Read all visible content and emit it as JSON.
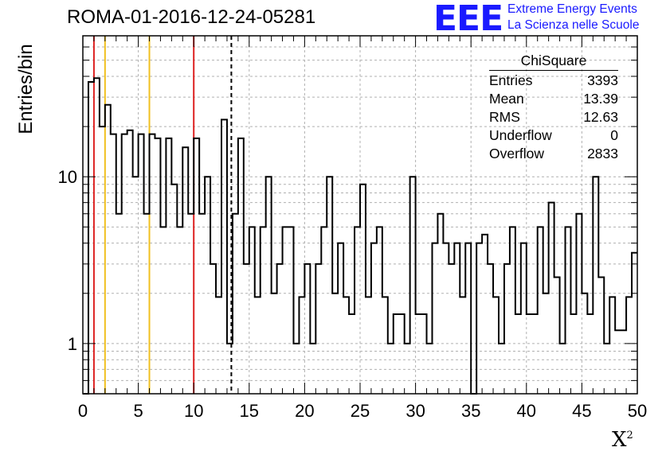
{
  "header": {
    "title": "ROMA-01-2016-12-24-05281",
    "logo_mark": "EEE",
    "logo_line1": "Extreme Energy Events",
    "logo_line2": "La Scienza nelle Scuole"
  },
  "stats_box": {
    "title": "ChiSquare",
    "rows": [
      {
        "label": "Entries",
        "value": "3393"
      },
      {
        "label": "Mean",
        "value": "13.39"
      },
      {
        "label": "RMS",
        "value": "12.63"
      },
      {
        "label": "Underflow",
        "value": "0"
      },
      {
        "label": "Overflow",
        "value": "2833"
      }
    ]
  },
  "colors": {
    "red_line": "#dd2222",
    "yellow_line": "#f0c020",
    "histogram": "#000000",
    "grid": "#b0b0b0",
    "logo": "#1a1aff"
  },
  "chart_data": {
    "type": "bar",
    "histogram": "step",
    "title": "ROMA-01-2016-12-24-05281",
    "xlabel": "X",
    "xlabel_sup": "2",
    "ylabel": "Entries/bin",
    "xlim": [
      0,
      50
    ],
    "ylim": [
      0.5,
      70
    ],
    "yscale": "log",
    "grid": true,
    "bin_width": 0.5,
    "x_ticks": [
      0,
      5,
      10,
      15,
      20,
      25,
      30,
      35,
      40,
      45,
      50
    ],
    "y_tick_labels": [
      {
        "value": 1,
        "label": "1"
      },
      {
        "value": 10,
        "label": "10"
      }
    ],
    "counts": [
      0.5,
      37,
      39,
      20,
      27,
      18,
      6,
      18,
      19,
      10,
      18,
      6,
      18,
      17,
      5,
      17,
      9,
      5,
      15,
      6,
      17,
      6,
      10,
      3,
      1.9,
      22,
      1,
      6,
      17,
      3,
      5,
      1.9,
      5,
      10,
      2,
      3,
      5,
      5,
      1,
      1.9,
      3,
      1,
      3,
      5,
      10,
      2,
      4,
      1.9,
      1.5,
      5,
      9,
      1.9,
      4,
      5,
      1.9,
      1,
      1.5,
      1.5,
      1,
      10,
      1.5,
      1.5,
      1,
      4,
      6,
      4,
      3,
      4,
      1.9,
      4,
      0.5,
      4,
      4.5,
      3,
      1.9,
      1,
      3,
      5,
      1.5,
      4,
      1.5,
      1.5,
      5,
      2,
      7,
      2.5,
      1,
      5,
      1.5,
      6,
      2,
      1.5,
      10,
      2.5,
      1,
      1.9,
      1.2,
      1.2,
      1.9,
      3.5
    ],
    "vertical_lines": [
      {
        "x": 1,
        "style": "solid",
        "color": "red"
      },
      {
        "x": 2,
        "style": "solid",
        "color": "yellow"
      },
      {
        "x": 6,
        "style": "solid",
        "color": "yellow"
      },
      {
        "x": 10,
        "style": "solid",
        "color": "red"
      },
      {
        "x": 13.39,
        "style": "dashed",
        "color": "black"
      }
    ]
  }
}
